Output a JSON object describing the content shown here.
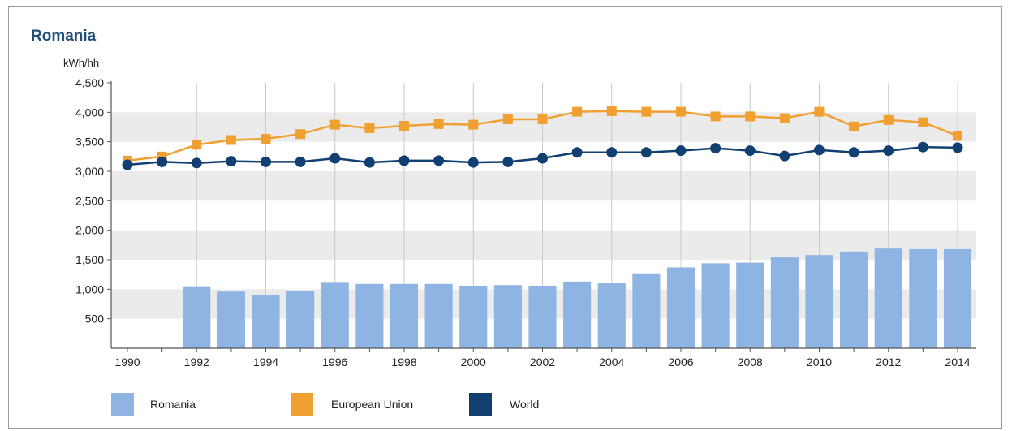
{
  "chart_data": {
    "type": "bar+line",
    "title": "Romania",
    "ylabel": "kWh/hh",
    "ylim": [
      0,
      4500
    ],
    "yticks": [
      500,
      1000,
      1500,
      2000,
      2500,
      3000,
      3500,
      4000,
      4500
    ],
    "ytick_labels": [
      "500",
      "1,000",
      "1,500",
      "2,000",
      "2,500",
      "3,000",
      "3,500",
      "4,000",
      "4,500"
    ],
    "x": [
      1990,
      1991,
      1992,
      1993,
      1994,
      1995,
      1996,
      1997,
      1998,
      1999,
      2000,
      2001,
      2002,
      2003,
      2004,
      2005,
      2006,
      2007,
      2008,
      2009,
      2010,
      2011,
      2012,
      2013,
      2014
    ],
    "xtick_labels": [
      "1990",
      "1992",
      "1994",
      "1996",
      "1998",
      "2000",
      "2002",
      "2004",
      "2006",
      "2008",
      "2010",
      "2012",
      "2014"
    ],
    "grid": "alternating horizontal bands, vertical lines",
    "legend_position": "bottom",
    "series": [
      {
        "name": "Romania",
        "type": "bar",
        "color": "#8db4e2",
        "values": [
          null,
          null,
          1050,
          960,
          900,
          970,
          1110,
          1090,
          1090,
          1090,
          1060,
          1070,
          1060,
          1130,
          1100,
          1270,
          1370,
          1440,
          1450,
          1540,
          1580,
          1640,
          1690,
          1680,
          1680
        ]
      },
      {
        "name": "European Union",
        "type": "line",
        "marker": "square",
        "color": "#f0a030",
        "values": [
          3180,
          3250,
          3450,
          3530,
          3550,
          3630,
          3790,
          3730,
          3770,
          3800,
          3790,
          3880,
          3880,
          4010,
          4020,
          4010,
          4010,
          3930,
          3930,
          3900,
          4010,
          3760,
          3870,
          3830,
          3600
        ]
      },
      {
        "name": "World",
        "type": "line",
        "marker": "circle",
        "color": "#123f72",
        "values": [
          3110,
          3160,
          3140,
          3170,
          3160,
          3160,
          3220,
          3150,
          3180,
          3180,
          3150,
          3160,
          3220,
          3320,
          3320,
          3320,
          3350,
          3390,
          3350,
          3260,
          3360,
          3320,
          3350,
          3410,
          3400
        ]
      }
    ]
  }
}
